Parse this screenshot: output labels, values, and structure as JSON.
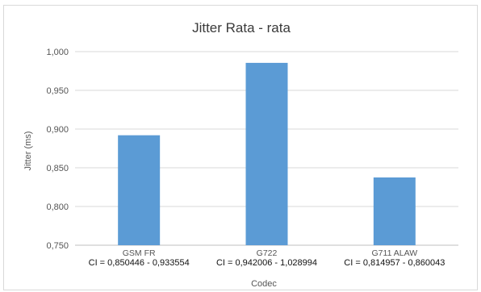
{
  "chart_data": {
    "type": "bar",
    "title": "Jitter Rata - rata",
    "xlabel": "Codec",
    "ylabel": "Jitter (ms)",
    "categories": [
      "GSM FR",
      "G722",
      "G711 ALAW"
    ],
    "ci_labels": [
      "CI = 0,850446 - 0,933554",
      "CI = 0,942006 - 1,028994",
      "CI = 0,814957 - 0,860043"
    ],
    "values": [
      0.892,
      0.9855,
      0.8375
    ],
    "ylim": [
      0.75,
      1.0
    ],
    "yticks": [
      0.75,
      0.8,
      0.85,
      0.9,
      0.95,
      1.0
    ],
    "ytick_labels": [
      "0,750",
      "0,800",
      "0,850",
      "0,900",
      "0,950",
      "1,000"
    ],
    "grid": true,
    "legend": "none",
    "bar_color": "#5b9bd5"
  }
}
